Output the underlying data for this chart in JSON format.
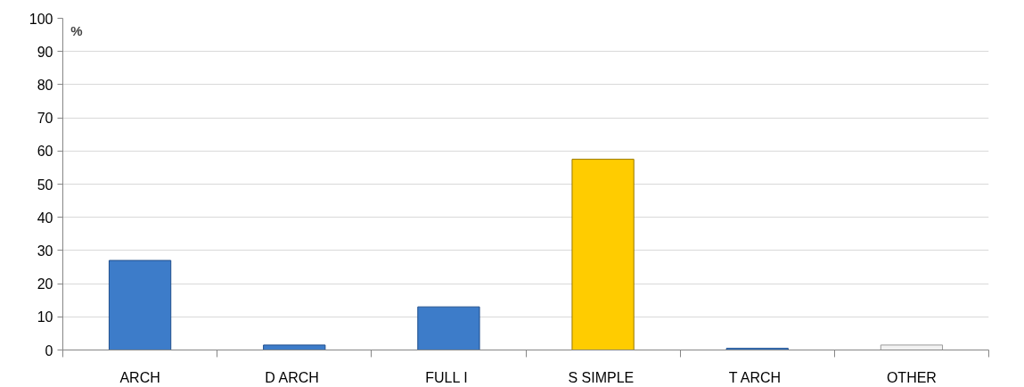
{
  "chart_data": {
    "type": "bar",
    "ylabel": "%",
    "categories": [
      "ARCH",
      "D  ARCH",
      "FULL  I",
      "S  SIMPLE",
      "T  ARCH",
      "OTHER"
    ],
    "values": [
      27,
      1.5,
      13,
      57.5,
      0.5,
      1.5
    ],
    "colors": [
      "#3d7cc9",
      "#3d7cc9",
      "#3d7cc9",
      "#ffcc00",
      "#3d7cc9",
      "#f2f2f2"
    ],
    "ylim": [
      0,
      100
    ],
    "yticks": [
      0,
      10,
      20,
      30,
      40,
      50,
      60,
      70,
      80,
      90,
      100
    ],
    "grid": "y"
  }
}
